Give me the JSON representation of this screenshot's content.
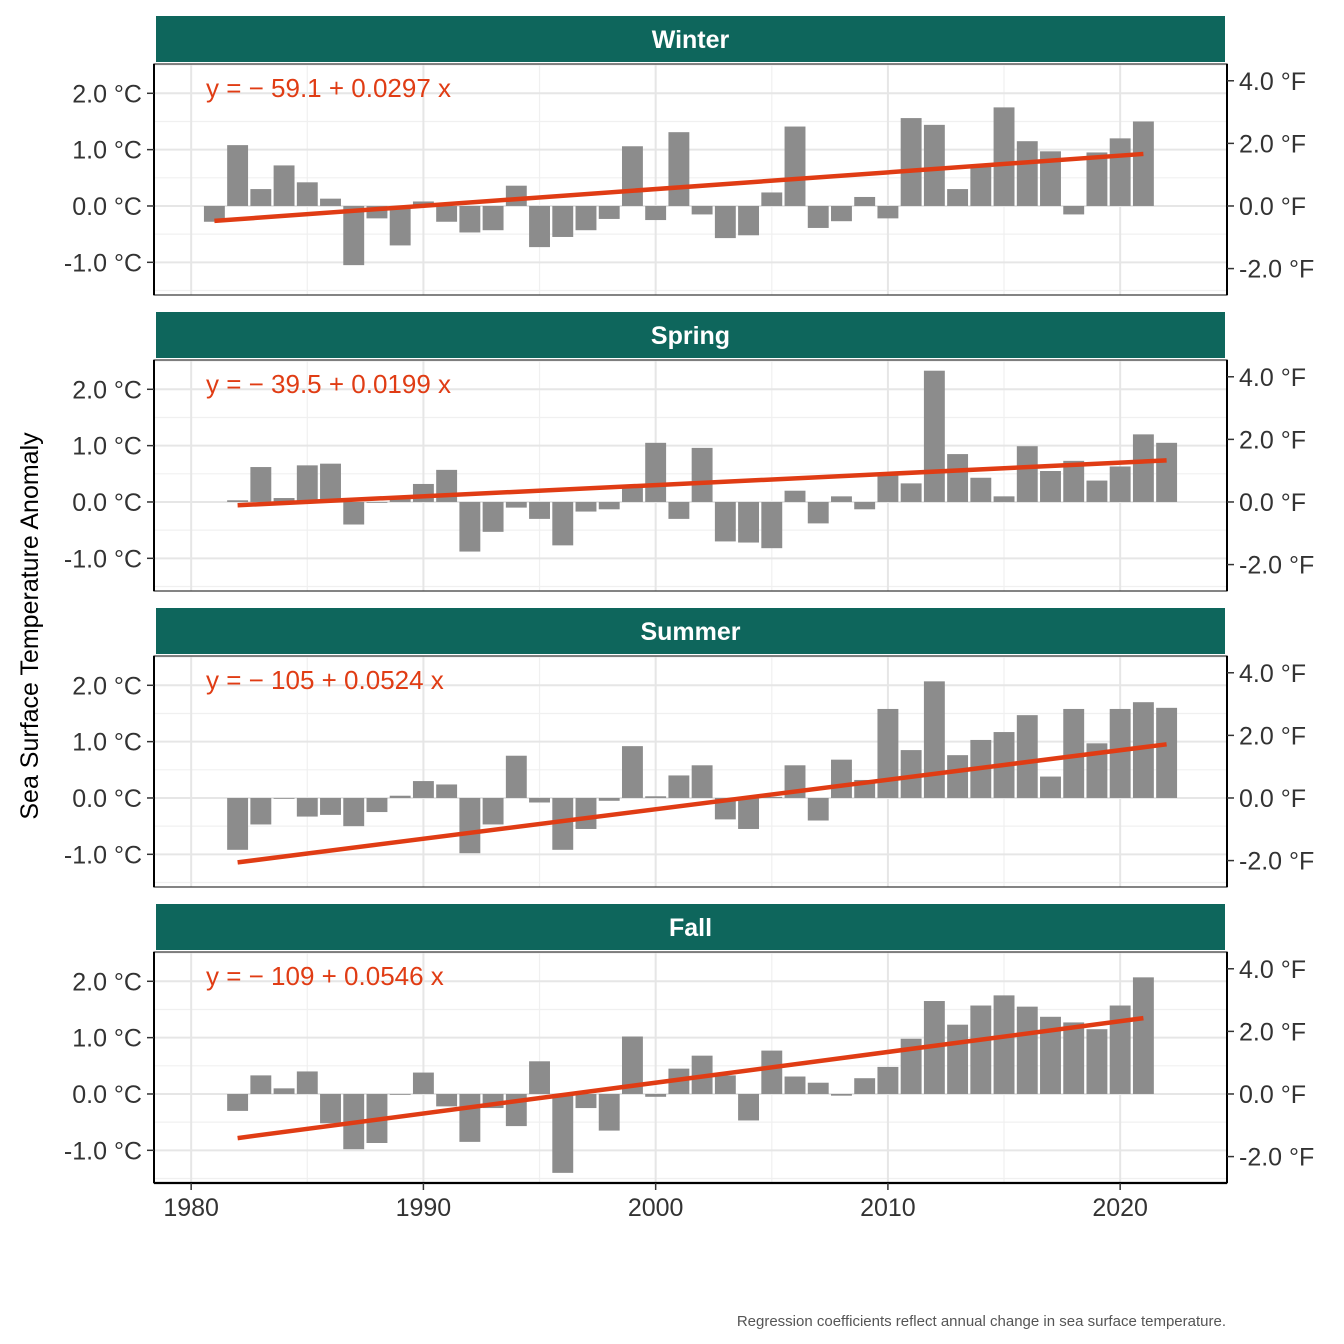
{
  "chart_data": {
    "type": "bar",
    "ylabel": "Sea Surface Temperature Anomaly",
    "caption": "Regression coefficients reflect annual change in sea surface temperature.",
    "xticks": [
      1980,
      1990,
      2000,
      2010,
      2020
    ],
    "xlim": [
      1978.4,
      2024.6
    ],
    "ylim": [
      -1.58,
      2.52
    ],
    "yticks_c": [
      -1,
      0,
      1,
      2
    ],
    "ytick_labels_c": [
      "-1.0 °C",
      "0.0 °C",
      "1.0 °C",
      "2.0 °C"
    ],
    "yticks_f": [
      -2,
      0,
      2,
      4
    ],
    "ytick_labels_f": [
      "-2.0 °F",
      "0.0 °F",
      "2.0 °F",
      "4.0 °F"
    ],
    "colors": {
      "strip": "#0e665c",
      "bar": "#8c8c8c",
      "trend": "#e03c14",
      "grid": "#e6e6e6"
    },
    "panels": [
      {
        "name": "Winter",
        "equation": "y = − 59.1 + 0.0297 x",
        "trend": {
          "x0": 1981,
          "x1": 2021,
          "intercept": -59.1,
          "slope": 0.0297
        },
        "x": [
          1981,
          1982,
          1983,
          1984,
          1985,
          1986,
          1987,
          1988,
          1989,
          1990,
          1991,
          1992,
          1993,
          1994,
          1995,
          1996,
          1997,
          1998,
          1999,
          2000,
          2001,
          2002,
          2003,
          2004,
          2005,
          2006,
          2007,
          2008,
          2009,
          2010,
          2011,
          2012,
          2013,
          2014,
          2015,
          2016,
          2017,
          2018,
          2019,
          2020,
          2021
        ],
        "values": [
          -0.28,
          1.08,
          0.3,
          0.72,
          0.42,
          0.13,
          -1.05,
          -0.22,
          -0.7,
          0.08,
          -0.28,
          -0.47,
          -0.43,
          0.36,
          -0.73,
          -0.55,
          -0.43,
          -0.23,
          1.06,
          -0.25,
          1.31,
          -0.15,
          -0.57,
          -0.52,
          0.24,
          1.41,
          -0.39,
          -0.27,
          0.16,
          -0.22,
          1.56,
          1.44,
          0.3,
          0.7,
          1.75,
          1.15,
          0.97,
          -0.15,
          0.95,
          1.2,
          1.5
        ]
      },
      {
        "name": "Spring",
        "equation": "y = − 39.5 + 0.0199 x",
        "trend": {
          "x0": 1982,
          "x1": 2022,
          "intercept": -39.5,
          "slope": 0.0199
        },
        "x": [
          1982,
          1983,
          1984,
          1985,
          1986,
          1987,
          1988,
          1989,
          1990,
          1991,
          1992,
          1993,
          1994,
          1995,
          1996,
          1997,
          1998,
          1999,
          2000,
          2001,
          2002,
          2003,
          2004,
          2005,
          2006,
          2007,
          2008,
          2009,
          2010,
          2011,
          2012,
          2013,
          2014,
          2015,
          2016,
          2017,
          2018,
          2019,
          2020,
          2021,
          2022
        ],
        "values": [
          0.03,
          0.62,
          0.07,
          0.65,
          0.68,
          -0.4,
          0.0,
          0.09,
          0.32,
          0.57,
          -0.88,
          -0.53,
          -0.1,
          -0.3,
          -0.77,
          -0.17,
          -0.13,
          0.25,
          1.05,
          -0.3,
          0.96,
          -0.7,
          -0.72,
          -0.82,
          0.2,
          -0.38,
          0.1,
          -0.13,
          0.52,
          0.33,
          2.33,
          0.85,
          0.43,
          0.1,
          0.99,
          0.55,
          0.73,
          0.38,
          0.63,
          1.2,
          1.05
        ]
      },
      {
        "name": "Summer",
        "equation": "y = − 105 + 0.0524 x",
        "trend": {
          "x0": 1982,
          "x1": 2022,
          "intercept": -105,
          "slope": 0.0524
        },
        "x": [
          1982,
          1983,
          1984,
          1985,
          1986,
          1987,
          1988,
          1989,
          1990,
          1991,
          1992,
          1993,
          1994,
          1995,
          1996,
          1997,
          1998,
          1999,
          2000,
          2001,
          2002,
          2003,
          2004,
          2005,
          2006,
          2007,
          2008,
          2009,
          2010,
          2011,
          2012,
          2013,
          2014,
          2015,
          2016,
          2017,
          2018,
          2019,
          2020,
          2021,
          2022
        ],
        "values": [
          -0.92,
          -0.47,
          0.0,
          -0.33,
          -0.3,
          -0.5,
          -0.25,
          0.04,
          0.3,
          0.24,
          -0.98,
          -0.47,
          0.75,
          -0.08,
          -0.92,
          -0.55,
          -0.05,
          0.92,
          0.03,
          0.4,
          0.58,
          -0.38,
          -0.55,
          0.02,
          0.58,
          -0.4,
          0.68,
          0.32,
          1.58,
          0.85,
          2.07,
          0.76,
          1.03,
          1.17,
          1.47,
          0.38,
          1.58,
          0.97,
          1.58,
          1.7,
          1.6
        ]
      },
      {
        "name": "Fall",
        "equation": "y = − 109 + 0.0546 x",
        "trend": {
          "x0": 1982,
          "x1": 2021,
          "intercept": -109,
          "slope": 0.0546
        },
        "x": [
          1982,
          1983,
          1984,
          1985,
          1986,
          1987,
          1988,
          1989,
          1990,
          1991,
          1992,
          1993,
          1994,
          1995,
          1996,
          1997,
          1998,
          1999,
          2000,
          2001,
          2002,
          2003,
          2004,
          2005,
          2006,
          2007,
          2008,
          2009,
          2010,
          2011,
          2012,
          2013,
          2014,
          2015,
          2016,
          2017,
          2018,
          2019,
          2020,
          2021
        ],
        "values": [
          -0.3,
          0.33,
          0.1,
          0.4,
          -0.52,
          -0.98,
          -0.87,
          0.0,
          0.38,
          -0.22,
          -0.85,
          -0.25,
          -0.57,
          0.58,
          -1.4,
          -0.25,
          -0.65,
          1.02,
          -0.05,
          0.45,
          0.68,
          0.33,
          -0.47,
          0.77,
          0.31,
          0.2,
          -0.03,
          0.28,
          0.48,
          0.98,
          1.65,
          1.23,
          1.57,
          1.75,
          1.55,
          1.37,
          1.27,
          1.15,
          1.57,
          2.07
        ]
      }
    ]
  }
}
